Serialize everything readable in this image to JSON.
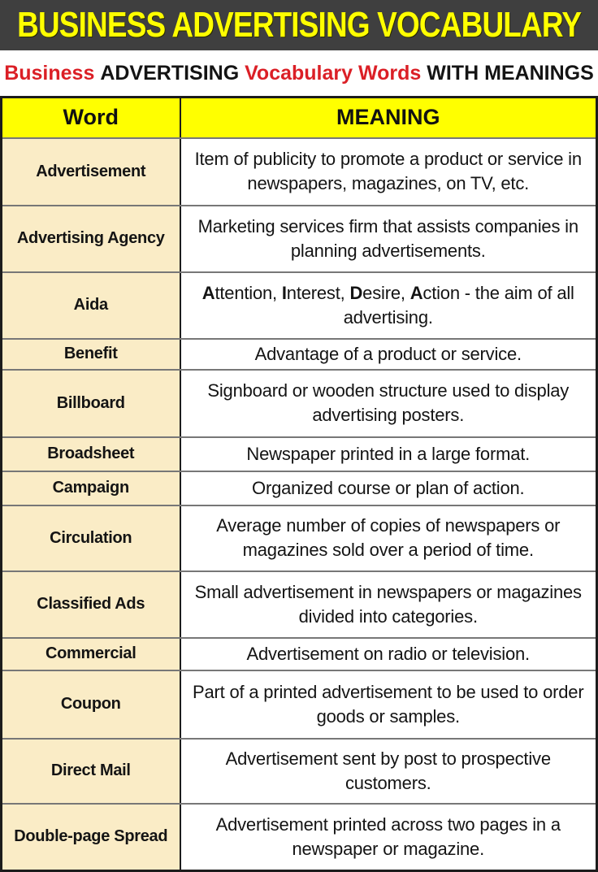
{
  "colors": {
    "banner_bg": "#3F3F3F",
    "banner_text": "#FFFF00",
    "accent_red": "#DB1F26",
    "text_black": "#141414",
    "header_yellow": "#FFFF00",
    "word_col_bg": "#FAECC6",
    "meaning_col_bg": "#FFFFFF"
  },
  "banner": {
    "title": "BUSINESS ADVERTISING VOCABULARY"
  },
  "subtitle": {
    "segments": [
      {
        "text": "Business ",
        "color": "#DB1F26"
      },
      {
        "text": "ADVERTISING ",
        "color": "#141414"
      },
      {
        "text": "Vocabulary Words ",
        "color": "#DB1F26"
      },
      {
        "text": "WITH MEANINGS",
        "color": "#141414"
      }
    ]
  },
  "table": {
    "headers": {
      "word": "Word",
      "meaning": "MEANING"
    },
    "rows": [
      {
        "word": "Advertisement",
        "meaning": "Item of publicity to promote a product or service in newspapers, magazines, on TV, etc."
      },
      {
        "word": "Advertising Agency",
        "meaning": "Marketing services firm that assists companies in planning advertisements."
      },
      {
        "word": "Aida",
        "meaning": "Attention, Interest, Desire, Action - the aim of all advertising.",
        "meaning_rich": [
          {
            "text": "A",
            "bold": true
          },
          {
            "text": "ttention, "
          },
          {
            "text": "I",
            "bold": true
          },
          {
            "text": "nterest, "
          },
          {
            "text": "D",
            "bold": true
          },
          {
            "text": "esire, "
          },
          {
            "text": "A",
            "bold": true
          },
          {
            "text": "ction - the aim of all advertising."
          }
        ]
      },
      {
        "word": "Benefit",
        "meaning": "Advantage of a product or service."
      },
      {
        "word": "Billboard",
        "meaning": "Signboard or wooden structure used to display advertising posters."
      },
      {
        "word": "Broadsheet",
        "meaning": "Newspaper printed in a large format."
      },
      {
        "word": "Campaign",
        "meaning": "Organized course or plan of action."
      },
      {
        "word": "Circulation",
        "meaning": "Average number of copies of newspapers or magazines sold over a period of time."
      },
      {
        "word": "Classified Ads",
        "meaning": "Small advertisement in newspapers or magazines divided into categories."
      },
      {
        "word": "Commercial",
        "meaning": "Advertisement on radio or television."
      },
      {
        "word": "Coupon",
        "meaning": "Part of a printed advertisement to be used to order goods or samples."
      },
      {
        "word": "Direct Mail",
        "meaning": "Advertisement sent by post to prospective customers."
      },
      {
        "word": "Double-page Spread",
        "meaning": "Advertisement printed across two pages in a newspaper or magazine."
      }
    ]
  }
}
